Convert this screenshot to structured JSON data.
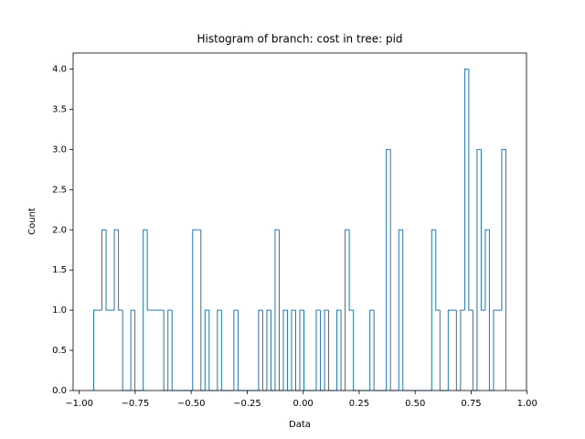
{
  "chart_data": {
    "type": "histogram",
    "title": "Histogram of branch: cost in tree: pid",
    "x_label": "Data",
    "y_label": "Count",
    "color": "#1f77b4",
    "bins": [
      -0.935,
      -0.9166,
      -0.8982,
      -0.8798,
      -0.8614,
      -0.843,
      -0.8246,
      -0.8062,
      -0.7878,
      -0.7694,
      -0.751,
      -0.7326,
      -0.7142,
      -0.6958,
      -0.6774,
      -0.659,
      -0.6406,
      -0.6222,
      -0.6038,
      -0.5854,
      -0.567,
      -0.5486,
      -0.5302,
      -0.5118,
      -0.4934,
      -0.475,
      -0.4566,
      -0.4382,
      -0.4198,
      -0.4014,
      -0.383,
      -0.3646,
      -0.3462,
      -0.3278,
      -0.3094,
      -0.291,
      -0.2726,
      -0.2542,
      -0.2358,
      -0.2174,
      -0.199,
      -0.1806,
      -0.1622,
      -0.1438,
      -0.1254,
      -0.107,
      -0.0886,
      -0.0702,
      -0.0518,
      -0.0334,
      -0.015,
      0.0034,
      0.0218,
      0.0402,
      0.0586,
      0.077,
      0.0954,
      0.1138,
      0.1322,
      0.1506,
      0.169,
      0.1874,
      0.2058,
      0.2242,
      0.2426,
      0.261,
      0.2794,
      0.2978,
      0.3162,
      0.3346,
      0.353,
      0.3714,
      0.3898,
      0.4082,
      0.4266,
      0.445,
      0.4634,
      0.4818,
      0.5002,
      0.5186,
      0.537,
      0.5554,
      0.5738,
      0.5922,
      0.6106,
      0.629,
      0.6474,
      0.6658,
      0.6842,
      0.7026,
      0.721,
      0.7394,
      0.7578,
      0.7762,
      0.7946,
      0.813,
      0.8314,
      0.8498,
      0.8682,
      0.8866,
      0.905
    ],
    "values": [
      1,
      1,
      2,
      1,
      1,
      2,
      1,
      0,
      0,
      1,
      0,
      0,
      2,
      1,
      1,
      1,
      1,
      0,
      1,
      0,
      0,
      0,
      0,
      0,
      2,
      2,
      0,
      1,
      0,
      0,
      1,
      0,
      0,
      0,
      1,
      0,
      0,
      0,
      0,
      0,
      1,
      0,
      1,
      0,
      2,
      0,
      1,
      0,
      1,
      0,
      1,
      0,
      0,
      0,
      1,
      0,
      1,
      0,
      0,
      1,
      0,
      2,
      1,
      0,
      0,
      0,
      0,
      1,
      0,
      0,
      0,
      3,
      0,
      0,
      2,
      0,
      0,
      0,
      0,
      0,
      0,
      0,
      2,
      1,
      0,
      0,
      1,
      1,
      0,
      1,
      4,
      1,
      0,
      3,
      1,
      2,
      0,
      1,
      1,
      3
    ],
    "xlim": [
      -1.027,
      0.997
    ],
    "ylim": [
      0,
      4.2
    ],
    "xticks": [
      {
        "value": -1,
        "label": "−1.00"
      },
      {
        "value": -0.75,
        "label": "−0.75"
      },
      {
        "value": -0.5,
        "label": "−0.50"
      },
      {
        "value": -0.25,
        "label": "−0.25"
      },
      {
        "value": 0,
        "label": "0.00"
      },
      {
        "value": 0.25,
        "label": "0.25"
      },
      {
        "value": 0.5,
        "label": "0.50"
      },
      {
        "value": 0.75,
        "label": "0.75"
      },
      {
        "value": 1,
        "label": "1.00"
      }
    ],
    "yticks": [
      {
        "value": 0,
        "label": "0.0"
      },
      {
        "value": 0.5,
        "label": "0.5"
      },
      {
        "value": 1,
        "label": "1.0"
      },
      {
        "value": 1.5,
        "label": "1.5"
      },
      {
        "value": 2,
        "label": "2.0"
      },
      {
        "value": 2.5,
        "label": "2.5"
      },
      {
        "value": 3,
        "label": "3.0"
      },
      {
        "value": 3.5,
        "label": "3.5"
      },
      {
        "value": 4,
        "label": "4.0"
      }
    ]
  }
}
